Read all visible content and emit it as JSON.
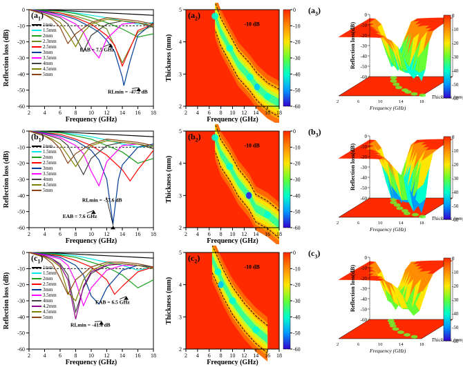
{
  "global": {
    "x_axis_label": "Frequency (GHz)",
    "rl_axis_label": "Reflection loss (dB)",
    "thk_axis_label": "Thickness (mm)",
    "rl_3d_label": "Reflection loss(dB)",
    "freq_ticks": [
      2,
      4,
      6,
      8,
      10,
      12,
      14,
      16,
      18
    ],
    "rl_ticks": [
      0,
      -10,
      -20,
      -30,
      -40,
      -50,
      -60
    ],
    "thk_ticks": [
      2,
      3,
      4,
      5
    ],
    "colorbar_ticks": [
      0,
      -10,
      -20,
      -30,
      -40,
      -50,
      -60
    ],
    "colormap": [
      "#ff2a00",
      "#ff8c00",
      "#ffe600",
      "#66ff33",
      "#00ffcc",
      "#0099ff",
      "#3300cc"
    ],
    "dash_ref_db": -10,
    "dash_ref_label": "-10 dB",
    "line_colors": {
      "1mm": "#000000",
      "1.5mm": "#00e5e5",
      "2mm": "#1aa01a",
      "2.3mm": "#6b8e23",
      "2.5mm": "#ff0000",
      "3mm": "#003c96",
      "3.5mm": "#ff00ff",
      "4mm": "#404040",
      "4.2mm": "#8b008b",
      "4.5mm": "#808000",
      "5mm": "#8b4513"
    }
  },
  "rows": [
    {
      "id": "a",
      "label_line": "(a",
      "label_heat": "(a",
      "label_3d": "(a",
      "legend_keys": [
        "1mm",
        "1.5mm",
        "2mm",
        "2.3mm",
        "2.5mm",
        "3mm",
        "3.5mm",
        "4mm",
        "4.5mm",
        "5mm"
      ],
      "annotations": [
        {
          "text": "EAB = 7.5 GHz",
          "fx": 11.2,
          "fy": -20
        },
        {
          "text": "RLmin = -47.2 dB",
          "fx": 14.8,
          "fy": -47.2,
          "label_at_y": -52
        }
      ],
      "rl_min_freq": 14.2,
      "rl_min_val": -47.2,
      "series": {
        "1mm": {
          "freqs": [
            2,
            4,
            6,
            8,
            10,
            12,
            14,
            16,
            18
          ],
          "vals": [
            0,
            -0.2,
            -0.5,
            -1,
            -1.5,
            -2,
            -2.5,
            -3,
            -3.5
          ]
        },
        "1.5mm": {
          "freqs": [
            2,
            4,
            6,
            8,
            10,
            12,
            14,
            16,
            18
          ],
          "vals": [
            0,
            -0.5,
            -1,
            -2,
            -3.5,
            -5,
            -7,
            -9,
            -8
          ]
        },
        "2mm": {
          "freqs": [
            2,
            4,
            6,
            8,
            10,
            12,
            14,
            16,
            18
          ],
          "vals": [
            0,
            -0.5,
            -1,
            -2.5,
            -5,
            -8,
            -12,
            -17,
            -15
          ]
        },
        "2.3mm": {
          "freqs": [
            2,
            4,
            6,
            8,
            10,
            12,
            14,
            16,
            18
          ],
          "vals": [
            0,
            -1,
            -2,
            -4,
            -7,
            -12,
            -33,
            -14,
            -10
          ]
        },
        "2.5mm": {
          "freqs": [
            2,
            4,
            6,
            8,
            10,
            12,
            13,
            14,
            16,
            18
          ],
          "vals": [
            0,
            -1,
            -2,
            -5,
            -9,
            -16,
            -22,
            -35,
            -13,
            -9
          ]
        },
        "3mm": {
          "freqs": [
            2,
            4,
            6,
            8,
            10,
            11,
            12,
            13,
            14,
            14.2,
            15,
            16,
            18
          ],
          "vals": [
            0,
            -1,
            -3,
            -6,
            -11,
            -14,
            -19,
            -26,
            -42,
            -47.2,
            -32,
            -16,
            -8
          ]
        },
        "3.5mm": {
          "freqs": [
            2,
            4,
            6,
            8,
            9,
            10,
            11,
            12,
            14,
            16,
            18
          ],
          "vals": [
            0,
            -1.5,
            -4,
            -9,
            -14,
            -24,
            -30,
            -18,
            -9,
            -8,
            -10
          ]
        },
        "4mm": {
          "freqs": [
            2,
            4,
            6,
            7,
            8,
            9,
            10,
            12,
            14,
            16,
            18
          ],
          "vals": [
            0,
            -2,
            -5,
            -9,
            -17,
            -26,
            -16,
            -9,
            -7,
            -8,
            -11
          ]
        },
        "4.5mm": {
          "freqs": [
            2,
            4,
            5,
            6,
            7,
            8,
            9,
            10,
            12,
            14,
            16,
            18
          ],
          "vals": [
            0,
            -3,
            -5,
            -8,
            -15,
            -23,
            -14,
            -9,
            -6,
            -7,
            -8,
            -10
          ]
        },
        "5mm": {
          "freqs": [
            2,
            4,
            5,
            6,
            7,
            8,
            10,
            12,
            14,
            16,
            18
          ],
          "vals": [
            0,
            -3,
            -6,
            -11,
            -21,
            -15,
            -8,
            -5,
            -6,
            -7,
            -9
          ]
        }
      },
      "heat_centers": [
        [
          18,
          2.1
        ],
        [
          16,
          2.3
        ],
        [
          14.2,
          2.6
        ],
        [
          13,
          2.9
        ],
        [
          11,
          3.3
        ],
        [
          9.5,
          3.8
        ],
        [
          8,
          4.3
        ],
        [
          7,
          4.8
        ]
      ]
    },
    {
      "id": "b",
      "label_line": "(b",
      "label_heat": "(b",
      "label_3d": "(b",
      "legend_keys": [
        "1mm",
        "1.5mm",
        "2mm",
        "2.5mm",
        "3mm",
        "3.5mm",
        "4mm",
        "4.5mm",
        "5mm"
      ],
      "annotations": [
        {
          "text": "RLmin = -57.6 dB",
          "fx": 11.5,
          "fy": -57.6,
          "label_at_y": -44
        },
        {
          "text": "EAB = 7.6 GHz",
          "fx": 9.0,
          "fy": -48
        }
      ],
      "rl_min_freq": 12.8,
      "rl_min_val": -57.6,
      "series": {
        "1mm": {
          "freqs": [
            2,
            4,
            6,
            8,
            10,
            12,
            14,
            16,
            18
          ],
          "vals": [
            0,
            -0.2,
            -0.5,
            -1,
            -1.5,
            -2,
            -2.5,
            -3,
            -3.5
          ]
        },
        "1.5mm": {
          "freqs": [
            2,
            4,
            6,
            8,
            10,
            12,
            14,
            16,
            18
          ],
          "vals": [
            0,
            -0.5,
            -1,
            -2,
            -3.5,
            -5.5,
            -8,
            -10,
            -9
          ]
        },
        "2mm": {
          "freqs": [
            2,
            4,
            6,
            8,
            10,
            12,
            14,
            16,
            18
          ],
          "vals": [
            0,
            -0.5,
            -1,
            -3,
            -5,
            -9,
            -13,
            -20,
            -17
          ]
        },
        "2.5mm": {
          "freqs": [
            2,
            4,
            6,
            8,
            10,
            12,
            14,
            15,
            16,
            18
          ],
          "vals": [
            0,
            -1,
            -2,
            -5,
            -9,
            -15,
            -24,
            -31,
            -24,
            -12
          ]
        },
        "3mm": {
          "freqs": [
            2,
            4,
            6,
            8,
            10,
            11,
            12,
            12.8,
            13.5,
            14,
            16,
            18
          ],
          "vals": [
            0,
            -1,
            -3,
            -6,
            -12,
            -18,
            -30,
            -57.6,
            -30,
            -21,
            -10,
            -8
          ]
        },
        "3.5mm": {
          "freqs": [
            2,
            4,
            6,
            8,
            9,
            10,
            11,
            12,
            14,
            16,
            18
          ],
          "vals": [
            0,
            -1.5,
            -4,
            -9,
            -14,
            -25,
            -34,
            -19,
            -9,
            -8,
            -10
          ]
        },
        "4mm": {
          "freqs": [
            2,
            4,
            6,
            7,
            8,
            9,
            10,
            12,
            14,
            16,
            18
          ],
          "vals": [
            0,
            -2,
            -5,
            -9,
            -18,
            -27,
            -17,
            -9,
            -7,
            -8,
            -11
          ]
        },
        "4.5mm": {
          "freqs": [
            2,
            4,
            5,
            6,
            7,
            8,
            9,
            10,
            12,
            14,
            16,
            18
          ],
          "vals": [
            0,
            -3,
            -5,
            -8,
            -15,
            -22,
            -15,
            -9,
            -6,
            -7,
            -8,
            -10
          ]
        },
        "5mm": {
          "freqs": [
            2,
            4,
            5,
            6,
            7,
            8,
            10,
            12,
            14,
            16,
            18
          ],
          "vals": [
            0,
            -3,
            -6,
            -11,
            -20,
            -14,
            -8,
            -5,
            -6,
            -7,
            -9
          ]
        }
      },
      "heat_centers": [
        [
          18,
          2.1
        ],
        [
          16,
          2.4
        ],
        [
          14,
          2.6
        ],
        [
          12.8,
          3.0
        ],
        [
          11,
          3.4
        ],
        [
          9.5,
          3.9
        ],
        [
          8,
          4.3
        ],
        [
          7,
          4.8
        ]
      ]
    },
    {
      "id": "c",
      "label_line": "(c",
      "label_heat": "(c",
      "label_3d": "(c",
      "legend_keys": [
        "1mm",
        "1.5mm",
        "2mm",
        "2.5mm",
        "3mm",
        "3.5mm",
        "4mm",
        "4.2mm",
        "4.5mm",
        "5mm"
      ],
      "annotations": [
        {
          "text": "EAB = 6.5 GHz",
          "fx": 13.2,
          "fy": -26
        },
        {
          "text": "RLmin = -41.4 dB",
          "fx": 10.0,
          "fy": -41.4,
          "label_at_y": -46
        }
      ],
      "rl_min_freq": 8.0,
      "rl_min_val": -41.4,
      "series": {
        "1mm": {
          "freqs": [
            2,
            4,
            6,
            8,
            10,
            12,
            14,
            16,
            18
          ],
          "vals": [
            0,
            -0.2,
            -0.5,
            -1,
            -1.5,
            -2,
            -2.5,
            -3,
            -3.5
          ]
        },
        "1.5mm": {
          "freqs": [
            2,
            4,
            6,
            8,
            10,
            12,
            14,
            16,
            18
          ],
          "vals": [
            0,
            -0.5,
            -1,
            -2,
            -4,
            -6,
            -8,
            -11,
            -9
          ]
        },
        "2mm": {
          "freqs": [
            2,
            4,
            6,
            8,
            10,
            12,
            14,
            16,
            18
          ],
          "vals": [
            0,
            -0.5,
            -1.5,
            -3,
            -6,
            -9,
            -14,
            -22,
            -17
          ]
        },
        "2.5mm": {
          "freqs": [
            2,
            4,
            6,
            8,
            10,
            12,
            13,
            14,
            16,
            18
          ],
          "vals": [
            0,
            -1,
            -2,
            -5,
            -9,
            -17,
            -26,
            -21,
            -12,
            -9
          ]
        },
        "3mm": {
          "freqs": [
            2,
            4,
            6,
            8,
            9,
            10,
            11,
            12,
            14,
            16,
            18
          ],
          "vals": [
            0,
            -1,
            -3,
            -8,
            -14,
            -27,
            -32,
            -22,
            -11,
            -8,
            -9
          ]
        },
        "3.5mm": {
          "freqs": [
            2,
            4,
            6,
            7,
            8,
            9,
            10,
            12,
            14,
            16,
            18
          ],
          "vals": [
            0,
            -1.5,
            -4,
            -8,
            -18,
            -33,
            -22,
            -11,
            -8,
            -8,
            -10
          ]
        },
        "4mm": {
          "freqs": [
            2,
            4,
            5,
            6,
            7,
            8,
            9,
            10,
            12,
            14,
            16,
            18
          ],
          "vals": [
            0,
            -2,
            -4,
            -7,
            -14,
            -37,
            -22,
            -13,
            -8,
            -7,
            -8,
            -10
          ]
        },
        "4.2mm": {
          "freqs": [
            2,
            4,
            5,
            6,
            7,
            8,
            9,
            10,
            12,
            14,
            16,
            18
          ],
          "vals": [
            0,
            -2,
            -4,
            -8,
            -17,
            -41.4,
            -21,
            -12,
            -8,
            -7,
            -8,
            -10
          ]
        },
        "4.5mm": {
          "freqs": [
            2,
            4,
            5,
            6,
            7,
            8,
            9,
            10,
            12,
            14,
            16,
            18
          ],
          "vals": [
            0,
            -2.5,
            -5,
            -9,
            -25,
            -30,
            -17,
            -11,
            -7,
            -7,
            -8,
            -10
          ]
        },
        "5mm": {
          "freqs": [
            2,
            4,
            5,
            6,
            7,
            8,
            10,
            12,
            14,
            16,
            18
          ],
          "vals": [
            0,
            -3,
            -7,
            -16,
            -26,
            -17,
            -9,
            -6,
            -6,
            -7,
            -9
          ]
        }
      },
      "heat_centers": [
        [
          16,
          2.3
        ],
        [
          14,
          2.6
        ],
        [
          12,
          3.0
        ],
        [
          10,
          3.5
        ],
        [
          8.5,
          4.0
        ],
        [
          7.5,
          4.4
        ],
        [
          6.5,
          4.8
        ]
      ]
    }
  ]
}
